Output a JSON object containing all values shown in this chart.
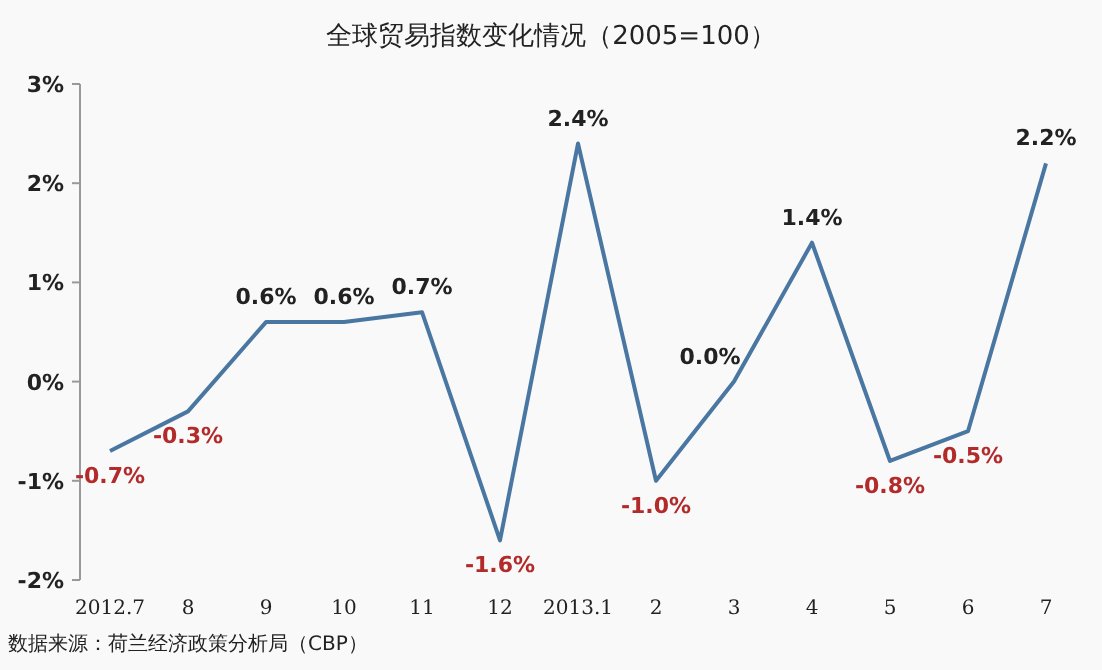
{
  "chart_data": {
    "type": "line",
    "title": "全球贸易指数变化情况（2005=100）",
    "categories": [
      "2012.7",
      "8",
      "9",
      "10",
      "11",
      "12",
      "2013.1",
      "2",
      "3",
      "4",
      "5",
      "6",
      "7"
    ],
    "series": [
      {
        "color": "#4a76a2",
        "values": [
          -0.7,
          -0.3,
          0.6,
          0.6,
          0.7,
          -1.6,
          2.4,
          -1.0,
          0.0,
          1.4,
          -0.8,
          -0.5,
          2.2
        ],
        "value_labels": [
          "-0.7%",
          "-0.3%",
          "0.6%",
          "0.6%",
          "0.7%",
          "-1.6%",
          "2.4%",
          "-1.0%",
          "0.0%",
          "1.4%",
          "-0.8%",
          "-0.5%",
          "2.2%"
        ]
      }
    ],
    "ylim": [
      -2,
      3
    ],
    "yticks": [
      {
        "value": -2,
        "label": "-2%"
      },
      {
        "value": -1,
        "label": "-1%"
      },
      {
        "value": 0,
        "label": "0%"
      },
      {
        "value": 1,
        "label": "1%"
      },
      {
        "value": 2,
        "label": "2%"
      },
      {
        "value": 3,
        "label": "3%"
      }
    ],
    "grid": false,
    "marker": "none",
    "line_style": "solid",
    "annotations": [
      "数据来源：荷兰经济政策分析局（CBP）"
    ]
  }
}
